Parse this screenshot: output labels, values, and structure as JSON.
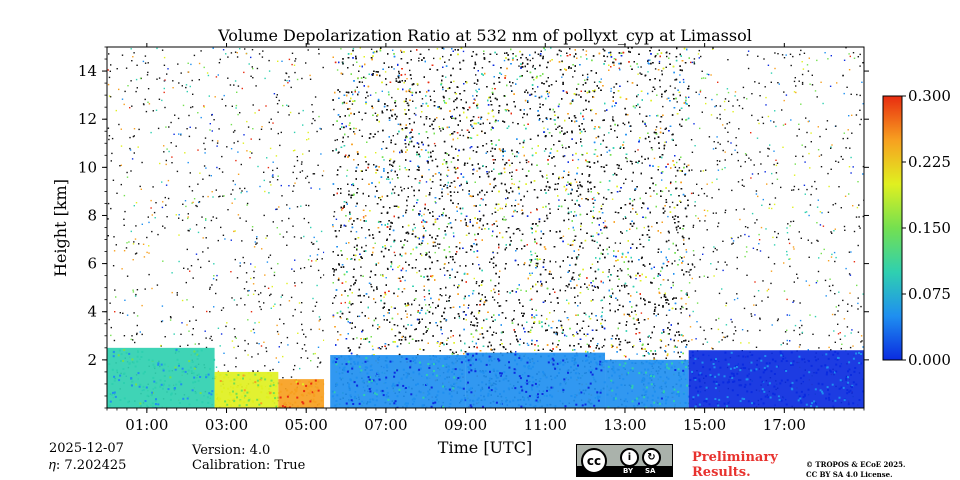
{
  "chart_data": {
    "type": "heatmap",
    "title": "Volume Depolarization Ratio at 532 nm of pollyxt_cyp at Limassol",
    "xlabel": "Time [UTC]",
    "ylabel": "Height [km]",
    "xlim": [
      0,
      19
    ],
    "ylim": [
      0,
      15
    ],
    "x_ticks": [
      {
        "value": 1,
        "label": "01:00"
      },
      {
        "value": 3,
        "label": "03:00"
      },
      {
        "value": 5,
        "label": "05:00"
      },
      {
        "value": 7,
        "label": "07:00"
      },
      {
        "value": 9,
        "label": "09:00"
      },
      {
        "value": 11,
        "label": "11:00"
      },
      {
        "value": 13,
        "label": "13:00"
      },
      {
        "value": 15,
        "label": "15:00"
      },
      {
        "value": 17,
        "label": "17:00"
      }
    ],
    "y_ticks": [
      {
        "value": 2,
        "label": "2"
      },
      {
        "value": 4,
        "label": "4"
      },
      {
        "value": 6,
        "label": "6"
      },
      {
        "value": 8,
        "label": "8"
      },
      {
        "value": 10,
        "label": "10"
      },
      {
        "value": 12,
        "label": "12"
      },
      {
        "value": 14,
        "label": "14"
      }
    ],
    "colorbar": {
      "range": [
        0.0,
        0.3
      ],
      "colors": [
        "#0a2be0",
        "#1f8ff0",
        "#2fd0b0",
        "#74e050",
        "#e0f020",
        "#f7a020",
        "#e82c10"
      ],
      "ticks": [
        {
          "value": 0.0,
          "label": "0.000"
        },
        {
          "value": 0.075,
          "label": "0.075"
        },
        {
          "value": 0.15,
          "label": "0.150"
        },
        {
          "value": 0.225,
          "label": "0.225"
        },
        {
          "value": 0.3,
          "label": "0.300"
        }
      ]
    },
    "noise_periods": [
      {
        "start": 0.0,
        "end": 5.45,
        "density": "sparse"
      },
      {
        "start": 5.65,
        "end": 14.6,
        "density": "dense"
      },
      {
        "start": 14.6,
        "end": 19.0,
        "density": "sparse"
      }
    ],
    "data_gaps": [
      5.45,
      5.6
    ],
    "boundary_layer": [
      {
        "from": 0.0,
        "to": 2.7,
        "top_km": 2.5,
        "depol": 0.09
      },
      {
        "from": 2.7,
        "to": 4.3,
        "top_km": 1.5,
        "depol": 0.19
      },
      {
        "from": 4.3,
        "to": 5.45,
        "top_km": 1.2,
        "depol": 0.26
      },
      {
        "from": 5.6,
        "to": 9.0,
        "top_km": 2.2,
        "depol": 0.045
      },
      {
        "from": 9.0,
        "to": 12.5,
        "top_km": 2.3,
        "depol": 0.035
      },
      {
        "from": 12.5,
        "to": 14.6,
        "top_km": 2.0,
        "depol": 0.06
      },
      {
        "from": 14.6,
        "to": 19.0,
        "top_km": 2.4,
        "depol": 0.02
      }
    ]
  },
  "footer": {
    "date": "2025-12-07",
    "eta": "𝜂: 7.202425",
    "version": "Version: 4.0",
    "calibration": "Calibration: True",
    "preliminary_line1": "Preliminary",
    "preliminary_line2": "Results.",
    "license_line1": "© TROPOS & ECoE 2025.",
    "license_line2": "CC BY SA 4.0 License.",
    "cc_badge": {
      "cc": "cc",
      "by": "BY",
      "sa": "SA"
    }
  }
}
